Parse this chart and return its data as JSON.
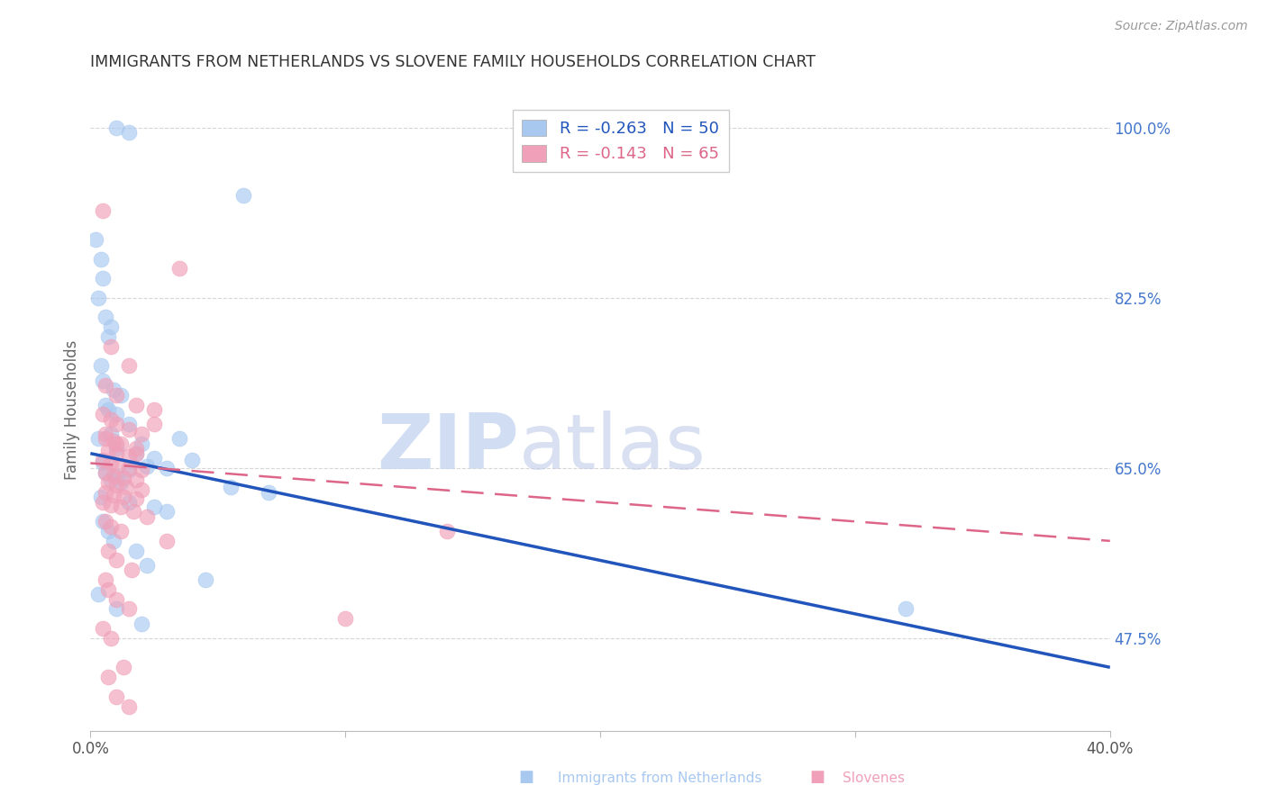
{
  "title": "IMMIGRANTS FROM NETHERLANDS VS SLOVENE FAMILY HOUSEHOLDS CORRELATION CHART",
  "source": "Source: ZipAtlas.com",
  "ylabel": "Family Households",
  "yticks": [
    47.5,
    65.0,
    82.5,
    100.0
  ],
  "ytick_labels": [
    "47.5%",
    "65.0%",
    "82.5%",
    "100.0%"
  ],
  "legend_entry1": "R = -0.263   N = 50",
  "legend_entry2": "R = -0.143   N = 65",
  "legend_label1": "Immigrants from Netherlands",
  "legend_label2": "Slovenes",
  "color_blue": "#A8C8F0",
  "color_pink": "#F0A0B8",
  "color_blue_line": "#2255BB",
  "color_pink_line": "#DD6688",
  "watermark_zip": "ZIP",
  "watermark_atlas": "atlas",
  "blue_scatter_x": [
    1.0,
    1.5,
    6.0,
    0.2,
    0.4,
    0.5,
    0.3,
    0.6,
    0.8,
    0.7,
    0.4,
    0.5,
    0.9,
    1.2,
    0.6,
    0.7,
    1.0,
    1.5,
    0.8,
    0.3,
    3.5,
    2.0,
    1.0,
    1.8,
    2.5,
    4.0,
    0.5,
    2.2,
    3.0,
    1.5,
    0.6,
    1.0,
    0.8,
    1.2,
    5.5,
    7.0,
    0.4,
    1.5,
    2.5,
    3.0,
    0.5,
    0.7,
    0.9,
    1.8,
    2.2,
    4.5,
    0.3,
    1.0,
    2.0,
    32.0
  ],
  "blue_scatter_y": [
    100.0,
    99.5,
    93.0,
    88.5,
    86.5,
    84.5,
    82.5,
    80.5,
    79.5,
    78.5,
    75.5,
    74.0,
    73.0,
    72.5,
    71.5,
    71.0,
    70.5,
    69.5,
    68.5,
    68.0,
    68.0,
    67.5,
    67.0,
    66.5,
    66.0,
    65.8,
    65.5,
    65.2,
    65.0,
    64.8,
    64.5,
    64.2,
    63.8,
    63.5,
    63.0,
    62.5,
    62.0,
    61.5,
    61.0,
    60.5,
    59.5,
    58.5,
    57.5,
    56.5,
    55.0,
    53.5,
    52.0,
    50.5,
    49.0,
    50.5
  ],
  "pink_scatter_x": [
    0.5,
    3.5,
    0.8,
    1.5,
    0.6,
    1.0,
    1.8,
    2.5,
    0.5,
    0.8,
    1.0,
    1.5,
    2.0,
    0.6,
    0.9,
    1.2,
    1.8,
    0.7,
    1.0,
    1.5,
    0.5,
    0.8,
    1.1,
    1.5,
    2.0,
    0.6,
    0.9,
    1.3,
    1.8,
    0.7,
    1.0,
    1.4,
    2.0,
    0.6,
    0.9,
    1.3,
    1.8,
    0.5,
    0.8,
    1.2,
    1.7,
    2.2,
    0.6,
    0.8,
    1.2,
    3.0,
    0.7,
    1.0,
    1.6,
    0.6,
    14.0,
    0.7,
    1.0,
    1.5,
    10.0,
    0.5,
    0.8,
    1.3,
    0.7,
    1.0,
    1.5,
    0.6,
    2.5,
    1.0,
    1.8
  ],
  "pink_scatter_y": [
    91.5,
    85.5,
    77.5,
    75.5,
    73.5,
    72.5,
    71.5,
    71.0,
    70.5,
    70.0,
    69.5,
    69.0,
    68.5,
    68.0,
    67.8,
    67.5,
    67.0,
    66.8,
    66.5,
    66.2,
    65.8,
    65.5,
    65.2,
    65.0,
    64.8,
    64.5,
    64.2,
    64.0,
    63.8,
    63.5,
    63.2,
    63.0,
    62.8,
    62.5,
    62.2,
    62.0,
    61.8,
    61.5,
    61.2,
    61.0,
    60.5,
    60.0,
    59.5,
    59.0,
    58.5,
    57.5,
    56.5,
    55.5,
    54.5,
    53.5,
    58.5,
    52.5,
    51.5,
    50.5,
    49.5,
    48.5,
    47.5,
    44.5,
    43.5,
    41.5,
    40.5,
    68.5,
    69.5,
    67.5,
    66.5
  ],
  "blue_line_x": [
    0.0,
    40.0
  ],
  "blue_line_y": [
    66.5,
    44.5
  ],
  "pink_line_x": [
    0.0,
    40.0
  ],
  "pink_line_y": [
    65.5,
    57.5
  ],
  "xmin": 0.0,
  "xmax": 40.0,
  "ymin": 38.0,
  "ymax": 104.0,
  "background_color": "#FFFFFF",
  "grid_color": "#CCCCCC",
  "title_color": "#333333",
  "axis_label_color": "#666666",
  "right_tick_color": "#4477CC"
}
